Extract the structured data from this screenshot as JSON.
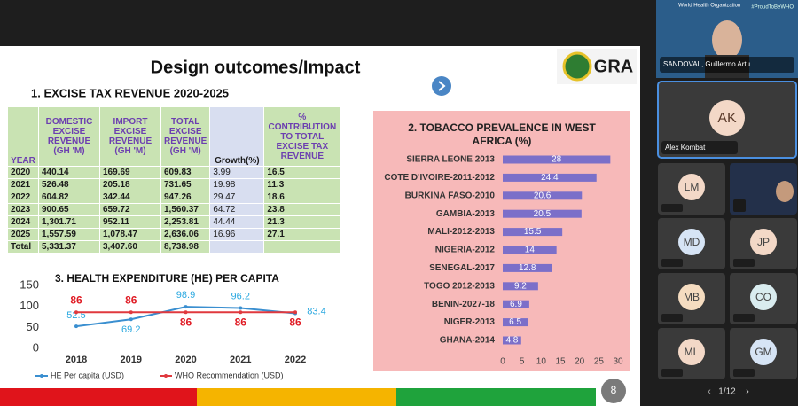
{
  "slide": {
    "title": "Design outcomes/Impact",
    "logo": "GRA",
    "page_number": "8",
    "section_title": "1. EXCISE TAX REVENUE 2020-2025",
    "table": {
      "header": [
        "YEAR",
        "DOMESTIC EXCISE REVENUE (GH 'M)",
        "IMPORT EXCISE REVENUE (GH 'M)",
        "TOTAL EXCISE REVENUE (GH 'M)",
        "Growth(%)",
        "% CONTRIBUTION TO TOTAL EXCISE TAX REVENUE"
      ],
      "rows": [
        [
          "2020",
          "440.14",
          "169.69",
          "609.83",
          "3.99",
          "16.5"
        ],
        [
          "2021",
          "526.48",
          "205.18",
          "731.65",
          "19.98",
          "11.3"
        ],
        [
          "2022",
          "604.82",
          "342.44",
          "947.26",
          "29.47",
          "18.6"
        ],
        [
          "2023",
          "900.65",
          "659.72",
          "1,560.37",
          "64.72",
          "23.8"
        ],
        [
          "2024",
          "1,301.71",
          "952.11",
          "2,253.81",
          "44.44",
          "21.3"
        ],
        [
          "2025",
          "1,557.59",
          "1,078.47",
          "2,636.06",
          "16.96",
          "27.1"
        ],
        [
          "Total",
          "5,331.37",
          "3,407.60",
          "8,738.98"
        ]
      ]
    }
  },
  "chart_data": [
    {
      "type": "line",
      "title": "3. HEALTH EXPENDITURE (HE) PER CAPITA",
      "categories": [
        "2018",
        "2019",
        "2020",
        "2021",
        "2022"
      ],
      "series": [
        {
          "name": "HE Per capita (USD)",
          "color": "#3a8fd0",
          "label_color": "#2aa8e0",
          "values": [
            52.5,
            69.2,
            98.9,
            96.2,
            83.4
          ]
        },
        {
          "name": "WHO Recommendation (USD)",
          "color": "#e0393e",
          "label_color": "#e01b24",
          "values": [
            86,
            86,
            86,
            86,
            86
          ]
        }
      ],
      "ylim": [
        0,
        150
      ],
      "yticks": [
        0,
        50,
        100,
        150
      ],
      "legend": "bottom"
    },
    {
      "type": "hbar",
      "title": "2. TOBACCO PREVALENCE IN WEST AFRICA (%)",
      "categories": [
        "SIERRA LEONE 2013",
        "COTE D'IVOIRE-2011-2012",
        "BURKINA FASO-2010",
        "GAMBIA-2013",
        "MALI-2012-2013",
        "NIGERIA-2012",
        "SENEGAL-2017",
        "TOGO 2012-2013",
        "BENIN-2027-18",
        "NIGER-2013",
        "GHANA-2014"
      ],
      "values": [
        28,
        24.4,
        20.6,
        20.5,
        15.5,
        14,
        12.8,
        9.2,
        6.9,
        6.5,
        4.8
      ],
      "color": "#7b6fc9",
      "background": "#f7b9b9",
      "xlim": [
        0,
        30
      ],
      "xticks": [
        0,
        5,
        10,
        15,
        20,
        25,
        30
      ]
    }
  ],
  "call": {
    "presenter": {
      "org": "World Health Organization",
      "tag": "#ProudToBeWHO",
      "name": "SANDOVAL, Guillermo Artu..."
    },
    "featured": {
      "initials": "AK",
      "name": "Alex Kombat"
    },
    "tiles": [
      "LM",
      "MD",
      "JP",
      "MB",
      "CO",
      "ML",
      "GM"
    ],
    "page": "1/12"
  }
}
